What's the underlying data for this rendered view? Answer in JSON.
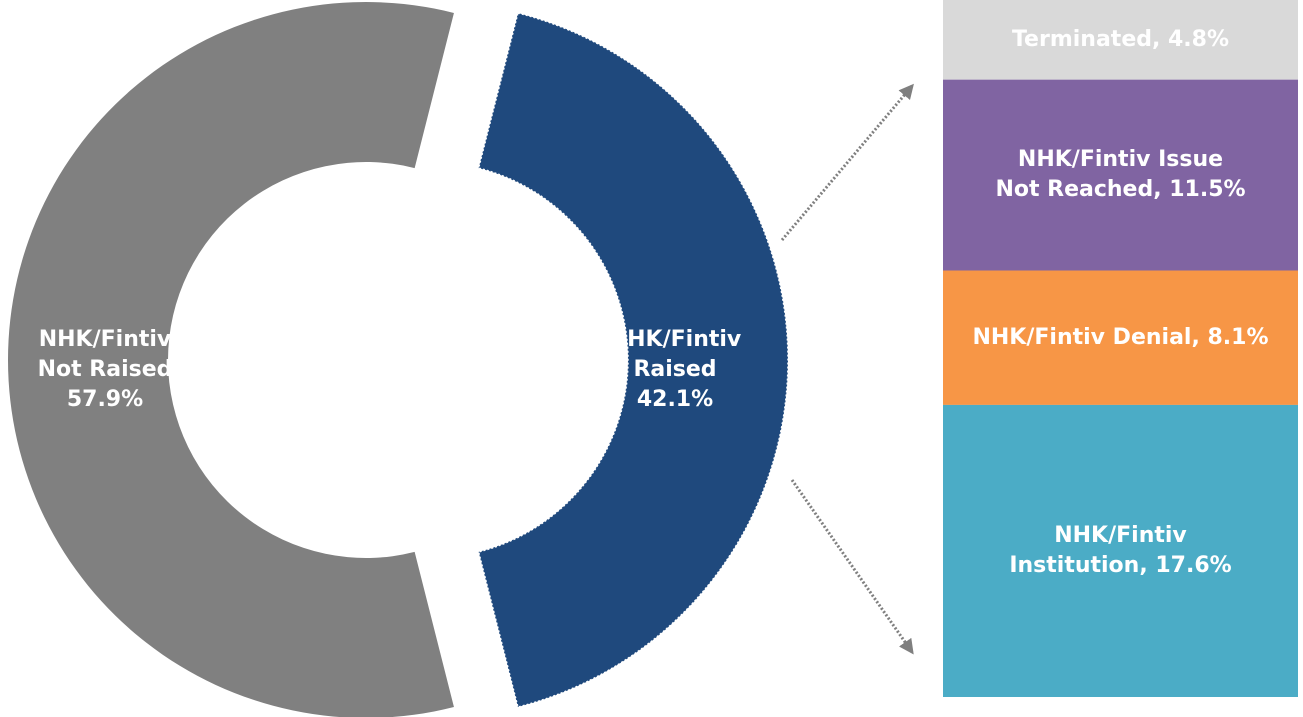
{
  "chart_data": [
    {
      "type": "doughnut",
      "categories": [
        "NHK/Fintiv Not Raised",
        "NHK/Fintiv Raised"
      ],
      "values": [
        57.9,
        42.1
      ],
      "value_labels": [
        "57.9%",
        "42.1%"
      ],
      "colors": [
        "#808080",
        "#1f497d"
      ]
    },
    {
      "type": "stacked-bar",
      "values": [
        4.8,
        11.5,
        8.1,
        17.6
      ],
      "value_labels": [
        "Terminated, 4.8%",
        "NHK/Fintiv Issue Not Reached, 11.5%",
        "NHK/Fintiv Denial, 8.1%",
        "NHK/Fintiv Institution, 17.6%"
      ],
      "colors": [
        "#d9d9d9",
        "#8064a2",
        "#f79646",
        "#4bacc6"
      ]
    }
  ]
}
